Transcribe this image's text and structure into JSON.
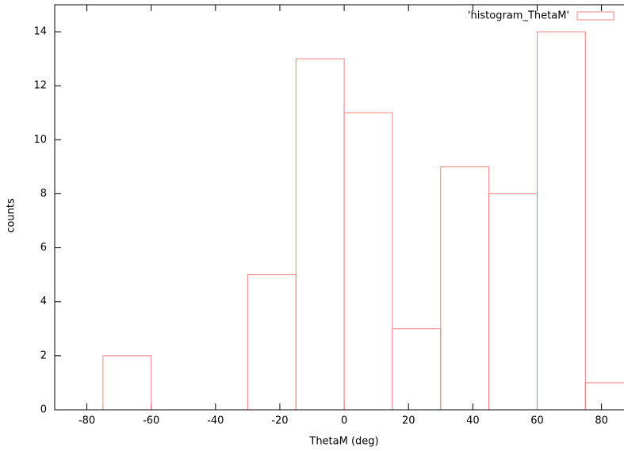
{
  "chart_data": {
    "type": "histogram",
    "xlabel": "ThetaM (deg)",
    "ylabel": "counts",
    "bins": [
      -75,
      -60,
      -45,
      -30,
      -15,
      0,
      15,
      30,
      45,
      60,
      75,
      90
    ],
    "series": [
      {
        "name": "'histogram_ThetaM'",
        "color": "#f08080",
        "values": [
          2,
          0,
          0,
          5,
          13,
          11,
          3,
          9,
          8,
          14,
          1
        ]
      }
    ],
    "xlim": [
      -90,
      87
    ],
    "ylim": [
      0,
      15
    ],
    "xticks": [
      -80,
      -60,
      -40,
      -20,
      0,
      20,
      40,
      60,
      80
    ],
    "yticks": [
      0,
      2,
      4,
      6,
      8,
      10,
      12,
      14
    ],
    "legend": "top-right"
  }
}
